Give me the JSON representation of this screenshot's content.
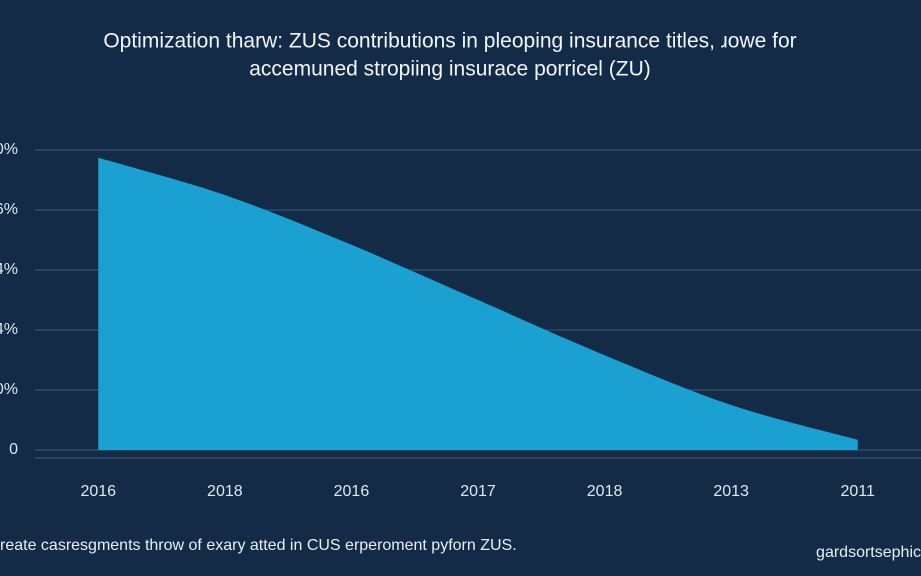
{
  "chart_data": {
    "type": "area",
    "title": "Optimization tharw: ZUS contributions in pleoping insurance titles, ɹowe for",
    "subtitle": "accemuned stropiing insurace porricel (ZU)",
    "caption": "reate casresgments throw of exary atted in CUS erperoment pyforn ZUS.",
    "source": "gardsortsephic",
    "categories": [
      "2016",
      "2018",
      "2016",
      "2017",
      "2018",
      "2013",
      "2011"
    ],
    "values": [
      4.87,
      4.25,
      3.42,
      2.5,
      1.58,
      0.75,
      0.17
    ],
    "color": "#1ba6da",
    "ylim": [
      0,
      5
    ],
    "yticks": [
      0,
      {
        "value": 1,
        "label": "0%"
      },
      {
        "value": 2,
        "label": "4%"
      },
      {
        "value": 3,
        "label": "4%"
      },
      {
        "value": 4,
        "label": "6%"
      },
      {
        "value": 5,
        "label": "0%"
      }
    ],
    "grid": true
  }
}
